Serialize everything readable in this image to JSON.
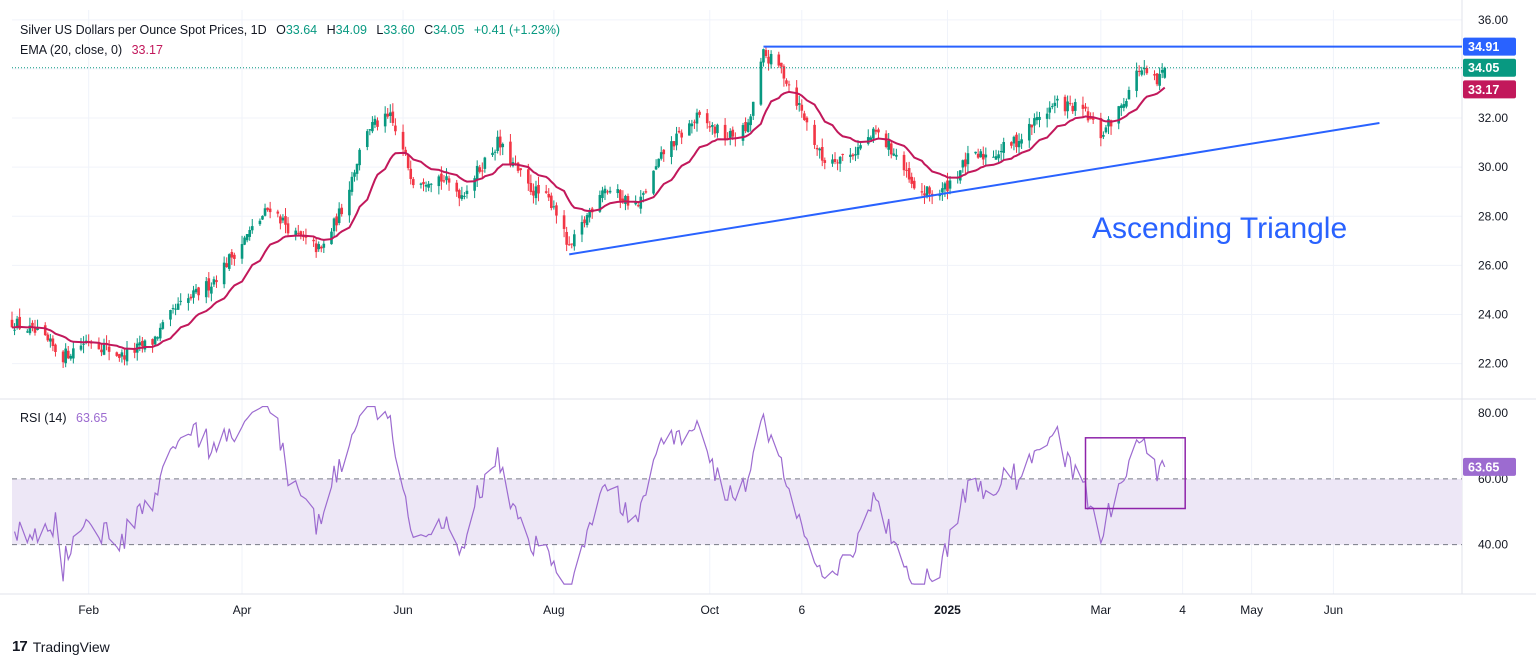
{
  "header": {
    "title": "Silver US Dollars per Ounce Spot Prices, 1D",
    "o_label": "O",
    "o": "33.64",
    "h_label": "H",
    "h": "34.09",
    "l_label": "L",
    "l": "33.60",
    "c_label": "C",
    "c": "34.05",
    "change": "+0.41 (+1.23%)",
    "ema_label": "EMA (20, close, 0)",
    "ema_value": "33.17",
    "rsi_label": "RSI (14)",
    "rsi_value": "63.65"
  },
  "annotation": "Ascending Triangle",
  "brand": "TradingView",
  "colors": {
    "up": "#089981",
    "down": "#f23645",
    "ema": "#c2185b",
    "trend": "#2962ff",
    "rsi": "#9c6bd0",
    "rsi_band": "#ede7f6",
    "box": "#8e24aa"
  },
  "chart_data": [
    {
      "type": "candlestick",
      "title": "Silver US Dollars per Ounce Spot Prices, 1D",
      "x_ticks": [
        "Feb",
        "Apr",
        "Jun",
        "Aug",
        "Oct",
        "6",
        "2025",
        "Mar",
        "4",
        "May",
        "Jun"
      ],
      "y_ticks": [
        "36.00",
        "34.00",
        "32.00",
        "30.00",
        "28.00",
        "26.00",
        "24.00",
        "22.00"
      ],
      "ylim": [
        20.6,
        36.4
      ],
      "price_labels": [
        {
          "value": 34.91,
          "text": "34.91",
          "color": "#2962ff"
        },
        {
          "value": 34.05,
          "text": "34.05",
          "color": "#089981"
        },
        {
          "value": 33.17,
          "text": "33.17",
          "color": "#c2185b"
        }
      ],
      "anchors_close": [
        [
          "2024-01-02",
          23.7
        ],
        [
          "2024-01-12",
          23.2
        ],
        [
          "2024-01-22",
          22.3
        ],
        [
          "2024-02-01",
          23.0
        ],
        [
          "2024-02-14",
          22.3
        ],
        [
          "2024-02-26",
          22.9
        ],
        [
          "2024-03-06",
          24.2
        ],
        [
          "2024-03-20",
          25.3
        ],
        [
          "2024-04-03",
          27.2
        ],
        [
          "2024-04-12",
          28.4
        ],
        [
          "2024-04-22",
          27.2
        ],
        [
          "2024-05-02",
          26.6
        ],
        [
          "2024-05-10",
          28.3
        ],
        [
          "2024-05-20",
          31.6
        ],
        [
          "2024-05-29",
          32.0
        ],
        [
          "2024-06-07",
          29.5
        ],
        [
          "2024-06-17",
          29.6
        ],
        [
          "2024-06-26",
          28.9
        ],
        [
          "2024-07-10",
          31.0
        ],
        [
          "2024-07-22",
          29.2
        ],
        [
          "2024-08-01",
          28.5
        ],
        [
          "2024-08-07",
          26.6
        ],
        [
          "2024-08-20",
          29.2
        ],
        [
          "2024-09-03",
          28.4
        ],
        [
          "2024-09-13",
          30.6
        ],
        [
          "2024-09-26",
          32.0
        ],
        [
          "2024-10-08",
          31.2
        ],
        [
          "2024-10-16",
          31.6
        ],
        [
          "2024-10-22",
          34.6
        ],
        [
          "2024-10-29",
          34.0
        ],
        [
          "2024-11-05",
          32.5
        ],
        [
          "2024-11-14",
          30.3
        ],
        [
          "2024-11-25",
          30.5
        ],
        [
          "2024-12-05",
          31.4
        ],
        [
          "2024-12-13",
          30.5
        ],
        [
          "2024-12-20",
          29.0
        ],
        [
          "2024-12-30",
          28.9
        ],
        [
          "2025-01-10",
          30.3
        ],
        [
          "2025-01-21",
          30.6
        ],
        [
          "2025-01-31",
          31.2
        ],
        [
          "2025-02-07",
          32.1
        ],
        [
          "2025-02-14",
          32.6
        ],
        [
          "2025-02-24",
          32.3
        ],
        [
          "2025-03-03",
          31.3
        ],
        [
          "2025-03-10",
          32.3
        ],
        [
          "2025-03-18",
          34.0
        ],
        [
          "2025-03-25",
          33.4
        ],
        [
          "2025-03-28",
          34.05
        ]
      ],
      "last_bar": {
        "open": 33.64,
        "high": 34.09,
        "low": 33.6,
        "close": 34.05
      },
      "ema": {
        "period": 20,
        "last": 33.17
      },
      "resistance_line": {
        "start": "2024-10-22",
        "end": "2025-06-30",
        "value": 34.91
      },
      "support_line": {
        "points": [
          [
            "2024-08-07",
            26.45
          ],
          [
            "2025-06-20",
            31.8
          ]
        ]
      },
      "annotation": "Ascending Triangle"
    },
    {
      "type": "line",
      "title": "RSI (14)",
      "y_ticks": [
        "80.00",
        "60.00",
        "40.00"
      ],
      "ylim": [
        25,
        84
      ],
      "levels": [
        60,
        40
      ],
      "last": 63.65,
      "highlight_box": {
        "x_start": "2025-02-25",
        "x_end": "2025-04-05",
        "y_top": 72.5,
        "y_bottom": 51
      }
    }
  ]
}
